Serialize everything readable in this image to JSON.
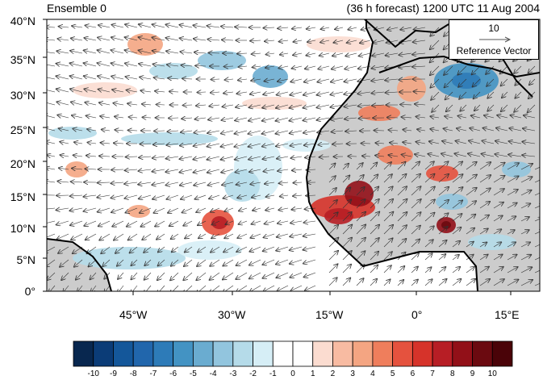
{
  "header": {
    "left_title": "Ensemble 0",
    "right_title": "(36 h forecast) 1200 UTC 11 Aug 2004"
  },
  "map": {
    "lat_ticks": [
      "40°N",
      "35°N",
      "30°N",
      "25°N",
      "20°N",
      "15°N",
      "10°N",
      "5°N",
      "0°"
    ],
    "lon_ticks": [
      "45°W",
      "30°W",
      "15°W",
      "0°",
      "15°E"
    ],
    "land_color": "#cccccc"
  },
  "reference_vector": {
    "magnitude": "10",
    "label": "Reference Vector"
  },
  "colorbar": {
    "labels": [
      "-10",
      "-9",
      "-8",
      "-7",
      "-6",
      "-5",
      "-4",
      "-3",
      "-2",
      "-1",
      "0",
      "1",
      "2",
      "3",
      "4",
      "5",
      "6",
      "7",
      "8",
      "9",
      "10"
    ],
    "colors": [
      "#08274f",
      "#0b3c77",
      "#14579a",
      "#2166ac",
      "#2d7bb8",
      "#4393c3",
      "#6aacd0",
      "#92c5de",
      "#b5dbe9",
      "#d6eef6",
      "#ffffff",
      "#ffffff",
      "#fbdcd0",
      "#f8bba2",
      "#f4a582",
      "#ef7e5c",
      "#e5523e",
      "#d6332a",
      "#b71e25",
      "#921018",
      "#6b0a10",
      "#4a0308"
    ]
  }
}
